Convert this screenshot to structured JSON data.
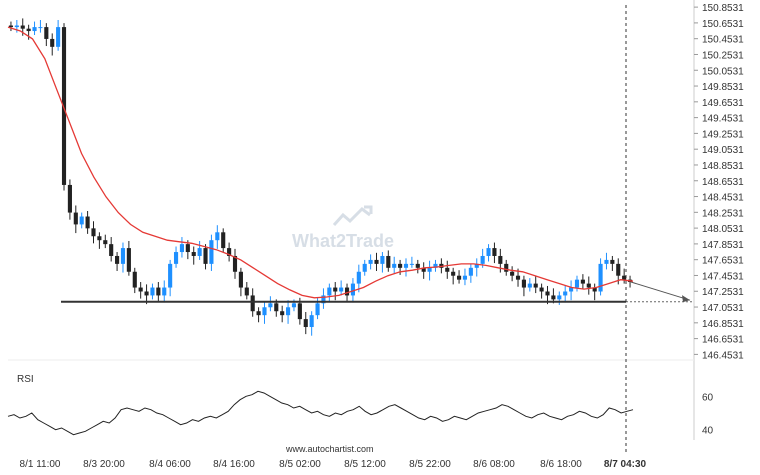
{
  "watermark": "What2Trade",
  "footer": "www.autochartist.com",
  "rsi_label": "RSI",
  "colors": {
    "up": "#1e90ff",
    "down": "#222222",
    "ma": "#e53935",
    "support": "#333333",
    "axis": "#cccccc",
    "rsi": "#222222"
  },
  "chart_data": {
    "type": "candlestick",
    "y_ticks": [
      "150.8531",
      "150.6531",
      "150.4531",
      "150.2531",
      "150.0531",
      "149.8531",
      "149.6531",
      "149.4531",
      "149.2531",
      "149.0531",
      "148.8531",
      "148.6531",
      "148.4531",
      "148.2531",
      "148.0531",
      "147.8531",
      "147.6531",
      "147.4531",
      "147.2531",
      "147.0531",
      "146.8531",
      "146.6531",
      "146.4531"
    ],
    "ylim": [
      146.42,
      150.88
    ],
    "x_ticks": [
      "8/1 11:00",
      "8/3 20:00",
      "8/4 06:00",
      "8/4 16:00",
      "8/5 02:00",
      "8/5 12:00",
      "8/5 22:00",
      "8/6 08:00",
      "8/6 18:00",
      "8/7 04:30"
    ],
    "support_level": 147.12,
    "last_price": 147.37,
    "forecast_target": 147.14,
    "rsi_ticks": [
      "60",
      "40"
    ],
    "rsi_range": [
      35,
      65
    ],
    "close_path": [
      150.6,
      150.62,
      150.58,
      150.55,
      150.6,
      150.6,
      150.45,
      150.35,
      150.6,
      148.6,
      148.25,
      148.1,
      148.2,
      148.05,
      147.95,
      147.9,
      147.85,
      147.7,
      147.6,
      147.8,
      147.5,
      147.3,
      147.25,
      147.2,
      147.3,
      147.2,
      147.3,
      147.6,
      147.75,
      147.85,
      147.75,
      147.7,
      147.8,
      147.6,
      147.9,
      148.0,
      147.8,
      147.7,
      147.5,
      147.3,
      147.2,
      147.0,
      146.95,
      147.05,
      147.1,
      147.0,
      146.95,
      147.05,
      147.1,
      146.9,
      146.8,
      146.95,
      147.1,
      147.2,
      147.3,
      147.25,
      147.3,
      147.2,
      147.35,
      147.5,
      147.6,
      147.65,
      147.6,
      147.7,
      147.55,
      147.6,
      147.55,
      147.6,
      147.6,
      147.55,
      147.5,
      147.55,
      147.6,
      147.55,
      147.5,
      147.45,
      147.4,
      147.45,
      147.55,
      147.6,
      147.7,
      147.8,
      147.7,
      147.6,
      147.5,
      147.45,
      147.4,
      147.3,
      147.35,
      147.3,
      147.25,
      147.2,
      147.15,
      147.2,
      147.25,
      147.3,
      147.4,
      147.35,
      147.3,
      147.25,
      147.6,
      147.65,
      147.6,
      147.45,
      147.4,
      147.37
    ],
    "rsi_path": [
      48,
      49,
      47,
      48,
      50,
      46,
      44,
      42,
      40,
      41,
      39,
      37,
      38,
      39,
      41,
      43,
      45,
      44,
      47,
      52,
      53,
      52,
      51,
      53,
      52,
      50,
      49,
      47,
      45,
      43,
      44,
      46,
      45,
      47,
      48,
      47,
      49,
      51,
      55,
      58,
      60,
      61,
      63,
      62,
      60,
      58,
      56,
      55,
      53,
      54,
      52,
      50,
      51,
      49,
      48,
      50,
      49,
      51,
      52,
      54,
      51,
      49,
      50,
      52,
      54,
      55,
      53,
      51,
      49,
      47,
      46,
      48,
      47,
      45,
      46,
      48,
      47,
      46,
      48,
      50,
      51,
      52,
      53,
      55,
      54,
      52,
      50,
      48,
      47,
      49,
      50,
      48,
      47,
      46,
      48,
      49,
      51,
      50,
      48,
      47,
      49,
      53,
      52,
      50,
      51,
      52
    ],
    "ma_path": [
      150.6,
      150.55,
      150.45,
      150.2,
      149.8,
      149.4,
      149.0,
      148.7,
      148.45,
      148.25,
      148.1,
      148.0,
      147.95,
      147.9,
      147.88,
      147.86,
      147.82,
      147.78,
      147.72,
      147.65,
      147.55,
      147.45,
      147.35,
      147.27,
      147.2,
      147.17,
      147.18,
      147.2,
      147.25,
      147.3,
      147.38,
      147.45,
      147.5,
      147.52,
      147.55,
      147.56,
      147.58,
      147.6,
      147.6,
      147.58,
      147.55,
      147.52,
      147.5,
      147.45,
      147.4,
      147.35,
      147.3,
      147.28,
      147.3,
      147.35,
      147.4,
      147.38
    ]
  }
}
